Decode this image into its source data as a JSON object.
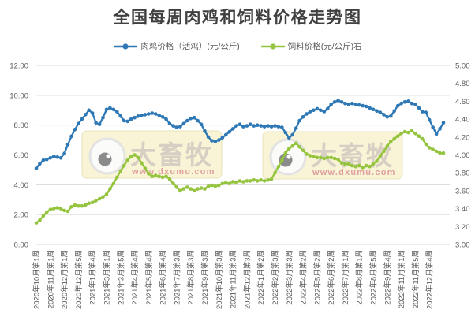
{
  "chart_data": {
    "type": "line",
    "title": "全国每周肉鸡和饲料价格走势图",
    "legend_position": "top",
    "grid": "horizontal",
    "label_every": 4,
    "x_labels": [
      "2020年10月第1周",
      "2020年11月第1周",
      "2020年12月第1周",
      "2020年12月第5周",
      "2021年1月第4周",
      "2021年3月第1周",
      "2021年3月第5周",
      "2021年4月第4周",
      "2021年5月第4周",
      "2021年6月第4周",
      "2021年7月第3周",
      "2021年8月第3周",
      "2021年9月第3周",
      "2021年10月第3周",
      "2021年11月第3周",
      "2021年12月第3周",
      "2022年1月第2周",
      "2022年2月第3周",
      "2022年3月第3周",
      "2022年4月第2周",
      "2022年5月第2周",
      "2022年6月第2周",
      "2022年7月第1周",
      "2022年8月第1周",
      "2022年8月第5周",
      "2022年9月第4周",
      "2022年11月第1周",
      "2022年11月第5周",
      "2022年12月第4周"
    ],
    "left_axis": {
      "min": 0,
      "max": 12,
      "step": 2,
      "labels": [
        "0.00",
        "2.00",
        "4.00",
        "6.00",
        "8.00",
        "10.00",
        "12.00"
      ]
    },
    "right_axis": {
      "min": 3,
      "max": 5,
      "step": 0.2,
      "labels": [
        "3.00",
        "3.20",
        "3.40",
        "3.60",
        "3.80",
        "4.00",
        "4.20",
        "4.40",
        "4.60",
        "4.80",
        "5.00"
      ]
    },
    "series": [
      {
        "name": "肉鸡价格（活鸡）(元/公斤)",
        "axis": "left",
        "color": "#2E78B5",
        "values": [
          5.1,
          5.4,
          5.65,
          5.7,
          5.8,
          5.9,
          5.85,
          5.8,
          6.1,
          6.7,
          7.25,
          7.7,
          8.1,
          8.4,
          8.7,
          9.0,
          8.8,
          8.15,
          8.05,
          8.5,
          9.05,
          9.15,
          9.05,
          8.9,
          8.6,
          8.3,
          8.25,
          8.4,
          8.5,
          8.6,
          8.65,
          8.7,
          8.75,
          8.8,
          8.75,
          8.65,
          8.55,
          8.4,
          8.1,
          7.95,
          7.85,
          7.9,
          8.1,
          8.3,
          8.45,
          8.5,
          8.3,
          8.05,
          7.6,
          7.2,
          6.95,
          6.9,
          7.0,
          7.15,
          7.35,
          7.55,
          7.75,
          7.95,
          8.05,
          7.9,
          7.95,
          8.05,
          7.95,
          8.0,
          7.95,
          7.9,
          7.95,
          7.9,
          7.95,
          7.9,
          7.85,
          7.5,
          7.15,
          7.35,
          7.8,
          8.3,
          8.55,
          8.75,
          8.9,
          9.0,
          9.1,
          9.0,
          8.9,
          9.1,
          9.4,
          9.55,
          9.65,
          9.55,
          9.45,
          9.4,
          9.45,
          9.4,
          9.35,
          9.3,
          9.25,
          9.15,
          9.05,
          8.95,
          8.85,
          8.7,
          8.55,
          8.6,
          8.95,
          9.3,
          9.45,
          9.55,
          9.6,
          9.45,
          9.4,
          9.15,
          8.9,
          8.85,
          8.35,
          7.85,
          7.4,
          7.75,
          8.15
        ]
      },
      {
        "name": "饲料价格(元/公斤)右",
        "axis": "right",
        "color": "#95C43E",
        "values": [
          3.24,
          3.27,
          3.32,
          3.36,
          3.39,
          3.4,
          3.41,
          3.4,
          3.38,
          3.37,
          3.42,
          3.44,
          3.43,
          3.43,
          3.44,
          3.46,
          3.47,
          3.49,
          3.51,
          3.53,
          3.56,
          3.62,
          3.68,
          3.75,
          3.82,
          3.88,
          3.94,
          3.98,
          4.0,
          3.97,
          3.91,
          3.85,
          3.79,
          3.76,
          3.77,
          3.76,
          3.75,
          3.76,
          3.73,
          3.68,
          3.64,
          3.6,
          3.62,
          3.64,
          3.62,
          3.6,
          3.62,
          3.63,
          3.62,
          3.65,
          3.66,
          3.65,
          3.66,
          3.68,
          3.69,
          3.68,
          3.7,
          3.69,
          3.71,
          3.7,
          3.71,
          3.71,
          3.72,
          3.71,
          3.72,
          3.71,
          3.72,
          3.73,
          3.8,
          3.87,
          3.94,
          4.02,
          4.07,
          4.1,
          4.13,
          4.09,
          4.05,
          4.01,
          3.99,
          3.98,
          3.97,
          3.97,
          3.96,
          3.97,
          3.97,
          3.96,
          3.95,
          3.91,
          3.9,
          3.9,
          3.88,
          3.87,
          3.88,
          3.86,
          3.88,
          3.87,
          3.9,
          3.93,
          3.99,
          4.04,
          4.1,
          4.15,
          4.18,
          4.21,
          4.24,
          4.26,
          4.25,
          4.27,
          4.24,
          4.21,
          4.18,
          4.12,
          4.08,
          4.06,
          4.04,
          4.02,
          4.02
        ]
      }
    ],
    "watermark": {
      "text": "大畜牧",
      "url": "www.dxumu.com"
    }
  },
  "colors": {
    "grid": "#D9D9D9",
    "tick_text": "#595959",
    "title_text": "#404040",
    "watermark_box": "#F7F3D2",
    "watermark_box_border": "#EAE3BC",
    "watermark_text": "#D5CCC2",
    "watermark_url": "#DF9FA0"
  }
}
